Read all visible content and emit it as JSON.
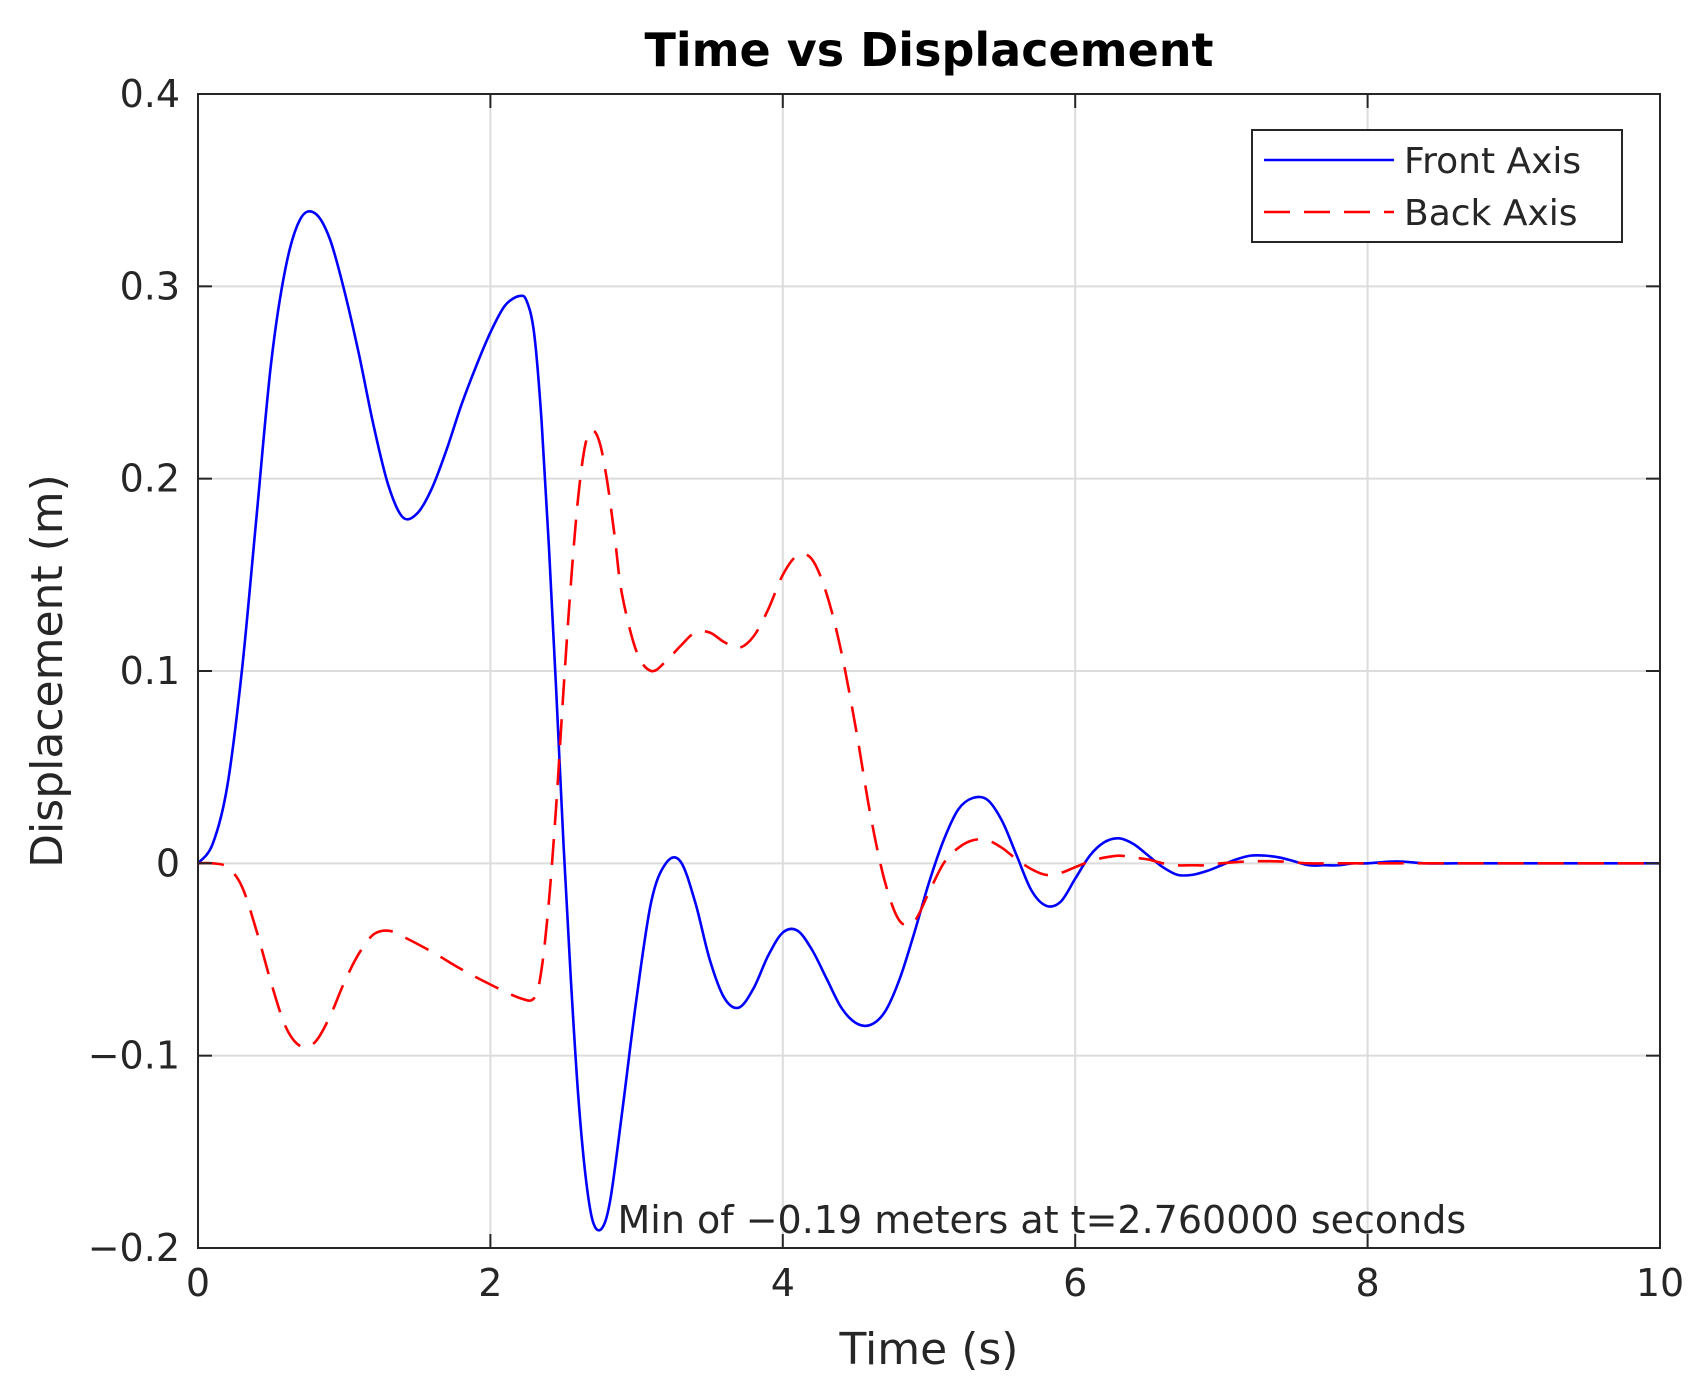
{
  "chart_data": {
    "type": "line",
    "title": "Time vs Displacement",
    "xlabel": "Time (s)",
    "ylabel": "Displacement (m)",
    "xlim": [
      0,
      10
    ],
    "ylim": [
      -0.2,
      0.4
    ],
    "xticks": [
      0,
      2,
      4,
      6,
      8,
      10
    ],
    "xtick_labels": [
      "0",
      "2",
      "4",
      "6",
      "8",
      "10"
    ],
    "yticks": [
      -0.2,
      -0.1,
      0,
      0.1,
      0.2,
      0.3,
      0.4
    ],
    "ytick_labels": [
      "−0.2",
      "−0.1",
      "0",
      "0.1",
      "0.2",
      "0.3",
      "0.4"
    ],
    "grid": true,
    "legend_position": "top-right",
    "annotation": "Min of −0.19 meters at t=2.760000 seconds",
    "annotation_at": [
      2.76,
      -0.19
    ],
    "series": [
      {
        "name": "Front Axis",
        "color": "#0000ff",
        "style": "solid",
        "x": [
          0,
          0.1,
          0.2,
          0.3,
          0.4,
          0.5,
          0.6,
          0.7,
          0.8,
          0.9,
          1.0,
          1.1,
          1.2,
          1.3,
          1.4,
          1.5,
          1.6,
          1.7,
          1.8,
          1.9,
          2.0,
          2.1,
          2.2,
          2.25,
          2.3,
          2.35,
          2.4,
          2.45,
          2.5,
          2.55,
          2.6,
          2.65,
          2.7,
          2.76,
          2.82,
          2.9,
          3.0,
          3.1,
          3.2,
          3.3,
          3.4,
          3.5,
          3.6,
          3.7,
          3.8,
          3.9,
          4.0,
          4.1,
          4.2,
          4.3,
          4.4,
          4.5,
          4.6,
          4.7,
          4.8,
          4.9,
          5.0,
          5.1,
          5.2,
          5.3,
          5.4,
          5.5,
          5.6,
          5.7,
          5.8,
          5.9,
          6.0,
          6.1,
          6.2,
          6.3,
          6.4,
          6.5,
          6.6,
          6.7,
          6.8,
          6.9,
          7.0,
          7.1,
          7.2,
          7.3,
          7.4,
          7.5,
          7.6,
          7.7,
          7.8,
          7.9,
          8.0,
          8.2,
          8.4,
          8.6,
          8.8,
          9.0,
          9.5,
          10.0
        ],
        "y": [
          0.0,
          0.01,
          0.04,
          0.1,
          0.18,
          0.26,
          0.31,
          0.335,
          0.338,
          0.325,
          0.298,
          0.265,
          0.228,
          0.197,
          0.18,
          0.182,
          0.195,
          0.215,
          0.238,
          0.258,
          0.276,
          0.29,
          0.295,
          0.292,
          0.275,
          0.23,
          0.165,
          0.09,
          0.01,
          -0.06,
          -0.12,
          -0.162,
          -0.186,
          -0.19,
          -0.175,
          -0.13,
          -0.07,
          -0.02,
          0.0,
          0.001,
          -0.02,
          -0.05,
          -0.07,
          -0.075,
          -0.065,
          -0.048,
          -0.036,
          -0.035,
          -0.045,
          -0.06,
          -0.075,
          -0.083,
          -0.084,
          -0.077,
          -0.06,
          -0.036,
          -0.01,
          0.012,
          0.028,
          0.034,
          0.033,
          0.022,
          0.004,
          -0.014,
          -0.022,
          -0.02,
          -0.008,
          0.004,
          0.011,
          0.013,
          0.01,
          0.004,
          -0.002,
          -0.006,
          -0.006,
          -0.004,
          -0.001,
          0.002,
          0.004,
          0.004,
          0.003,
          0.001,
          -0.001,
          -0.001,
          -0.001,
          0.0,
          0.0,
          0.001,
          0.0,
          0.0,
          0.0,
          0.0,
          0.0,
          0.0
        ]
      },
      {
        "name": "Back Axis",
        "color": "#ff0000",
        "style": "dashed",
        "x": [
          0,
          0.1,
          0.2,
          0.3,
          0.4,
          0.5,
          0.6,
          0.7,
          0.8,
          0.9,
          1.0,
          1.1,
          1.2,
          1.3,
          1.4,
          1.6,
          1.8,
          2.0,
          2.2,
          2.3,
          2.35,
          2.4,
          2.45,
          2.5,
          2.55,
          2.6,
          2.65,
          2.7,
          2.75,
          2.8,
          2.85,
          2.9,
          3.0,
          3.1,
          3.2,
          3.3,
          3.4,
          3.5,
          3.6,
          3.7,
          3.8,
          3.9,
          4.0,
          4.1,
          4.2,
          4.3,
          4.4,
          4.5,
          4.6,
          4.7,
          4.8,
          4.9,
          5.0,
          5.1,
          5.2,
          5.3,
          5.4,
          5.5,
          5.6,
          5.7,
          5.8,
          5.9,
          6.0,
          6.1,
          6.2,
          6.3,
          6.4,
          6.5,
          6.6,
          6.7,
          6.8,
          6.9,
          7.0,
          7.2,
          7.4,
          7.6,
          7.8,
          8.0,
          8.5,
          9.0,
          10.0
        ],
        "y": [
          0.0,
          0.0,
          -0.002,
          -0.012,
          -0.035,
          -0.062,
          -0.085,
          -0.095,
          -0.093,
          -0.08,
          -0.062,
          -0.047,
          -0.037,
          -0.035,
          -0.038,
          -0.046,
          -0.055,
          -0.063,
          -0.07,
          -0.07,
          -0.055,
          -0.02,
          0.03,
          0.09,
          0.145,
          0.19,
          0.218,
          0.225,
          0.218,
          0.198,
          0.17,
          0.14,
          0.11,
          0.1,
          0.105,
          0.113,
          0.12,
          0.12,
          0.115,
          0.112,
          0.118,
          0.132,
          0.15,
          0.16,
          0.158,
          0.14,
          0.11,
          0.07,
          0.025,
          -0.01,
          -0.03,
          -0.03,
          -0.015,
          0.0,
          0.008,
          0.012,
          0.012,
          0.008,
          0.002,
          -0.003,
          -0.006,
          -0.005,
          -0.002,
          0.001,
          0.003,
          0.004,
          0.003,
          0.002,
          0.0,
          -0.001,
          -0.001,
          -0.001,
          0.0,
          0.001,
          0.001,
          0.0,
          0.0,
          0.0,
          0.0,
          0.0,
          0.0
        ]
      }
    ]
  }
}
